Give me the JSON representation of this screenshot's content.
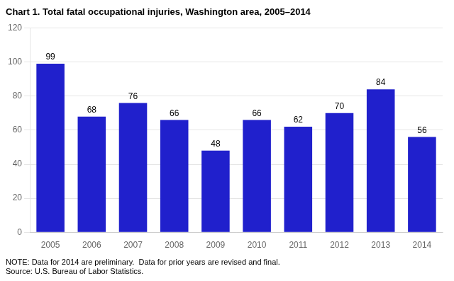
{
  "chart_data": {
    "type": "bar",
    "title": "Chart 1. Total fatal occupational injuries, Washington area, 2005–2014",
    "categories": [
      "2005",
      "2006",
      "2007",
      "2008",
      "2009",
      "2010",
      "2011",
      "2012",
      "2013",
      "2014"
    ],
    "values": [
      99,
      68,
      76,
      66,
      48,
      66,
      62,
      70,
      84,
      56
    ],
    "color": "#2020cc",
    "ylim": [
      0,
      120
    ],
    "yticks": [
      0,
      20,
      40,
      60,
      80,
      100,
      120
    ],
    "grid": true,
    "data_labels": true,
    "annotations": [
      "NOTE: Data for 2014 are preliminary.  Data for prior years are revised and final.",
      "Source: U.S. Bureau of Labor Statistics."
    ]
  }
}
